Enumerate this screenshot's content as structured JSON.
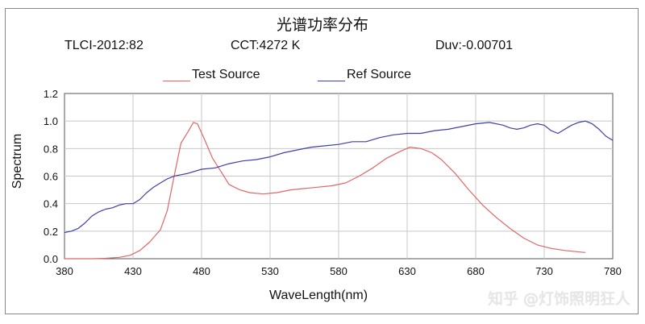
{
  "chart_data": {
    "type": "line",
    "title": "光谱功率分布",
    "info": {
      "tlci": "TLCI-2012:82",
      "cct": "CCT:4272 K",
      "duv": "Duv:-0.00701"
    },
    "xlabel": "WaveLength(nm)",
    "ylabel": "Spectrum",
    "xlim": [
      380,
      780
    ],
    "ylim": [
      0,
      1.2
    ],
    "x_ticks": [
      "380",
      "430",
      "480",
      "530",
      "580",
      "630",
      "680",
      "730",
      "780"
    ],
    "y_ticks": [
      "0.0",
      "0.2",
      "0.4",
      "0.6",
      "0.8",
      "1.0",
      "1.2"
    ],
    "grid": true,
    "legend_position": "top",
    "series": [
      {
        "name": "Test Source",
        "color": "#e06666",
        "points": [
          [
            380,
            0.0
          ],
          [
            390,
            0.0
          ],
          [
            400,
            0.0
          ],
          [
            410,
            0.003
          ],
          [
            420,
            0.01
          ],
          [
            428,
            0.025
          ],
          [
            435,
            0.06
          ],
          [
            442,
            0.12
          ],
          [
            450,
            0.21
          ],
          [
            455,
            0.35
          ],
          [
            460,
            0.6
          ],
          [
            465,
            0.84
          ],
          [
            470,
            0.92
          ],
          [
            474,
            0.99
          ],
          [
            477,
            0.98
          ],
          [
            482,
            0.87
          ],
          [
            488,
            0.73
          ],
          [
            495,
            0.62
          ],
          [
            500,
            0.54
          ],
          [
            508,
            0.5
          ],
          [
            515,
            0.48
          ],
          [
            525,
            0.47
          ],
          [
            535,
            0.48
          ],
          [
            545,
            0.5
          ],
          [
            555,
            0.51
          ],
          [
            565,
            0.52
          ],
          [
            575,
            0.53
          ],
          [
            585,
            0.55
          ],
          [
            595,
            0.6
          ],
          [
            605,
            0.66
          ],
          [
            615,
            0.73
          ],
          [
            625,
            0.78
          ],
          [
            632,
            0.81
          ],
          [
            640,
            0.8
          ],
          [
            648,
            0.77
          ],
          [
            655,
            0.72
          ],
          [
            665,
            0.62
          ],
          [
            675,
            0.5
          ],
          [
            685,
            0.39
          ],
          [
            695,
            0.3
          ],
          [
            705,
            0.22
          ],
          [
            715,
            0.15
          ],
          [
            725,
            0.1
          ],
          [
            735,
            0.075
          ],
          [
            745,
            0.06
          ],
          [
            760,
            0.045
          ]
        ]
      },
      {
        "name": "Ref Source",
        "color": "#3f3faa",
        "points": [
          [
            380,
            0.19
          ],
          [
            385,
            0.2
          ],
          [
            390,
            0.22
          ],
          [
            395,
            0.26
          ],
          [
            400,
            0.31
          ],
          [
            405,
            0.34
          ],
          [
            410,
            0.36
          ],
          [
            415,
            0.37
          ],
          [
            420,
            0.39
          ],
          [
            425,
            0.4
          ],
          [
            430,
            0.4
          ],
          [
            435,
            0.43
          ],
          [
            440,
            0.48
          ],
          [
            445,
            0.52
          ],
          [
            450,
            0.55
          ],
          [
            455,
            0.58
          ],
          [
            460,
            0.6
          ],
          [
            465,
            0.61
          ],
          [
            470,
            0.62
          ],
          [
            480,
            0.65
          ],
          [
            490,
            0.66
          ],
          [
            500,
            0.69
          ],
          [
            510,
            0.71
          ],
          [
            520,
            0.72
          ],
          [
            530,
            0.74
          ],
          [
            540,
            0.77
          ],
          [
            550,
            0.79
          ],
          [
            560,
            0.81
          ],
          [
            570,
            0.82
          ],
          [
            580,
            0.83
          ],
          [
            590,
            0.85
          ],
          [
            600,
            0.85
          ],
          [
            610,
            0.88
          ],
          [
            620,
            0.9
          ],
          [
            630,
            0.91
          ],
          [
            640,
            0.91
          ],
          [
            650,
            0.93
          ],
          [
            660,
            0.94
          ],
          [
            670,
            0.96
          ],
          [
            680,
            0.98
          ],
          [
            690,
            0.99
          ],
          [
            700,
            0.97
          ],
          [
            705,
            0.95
          ],
          [
            710,
            0.94
          ],
          [
            715,
            0.95
          ],
          [
            720,
            0.97
          ],
          [
            725,
            0.98
          ],
          [
            730,
            0.97
          ],
          [
            735,
            0.93
          ],
          [
            740,
            0.91
          ],
          [
            745,
            0.94
          ],
          [
            750,
            0.97
          ],
          [
            755,
            0.99
          ],
          [
            760,
            1.0
          ],
          [
            765,
            0.98
          ],
          [
            770,
            0.94
          ],
          [
            775,
            0.89
          ],
          [
            780,
            0.86
          ]
        ]
      }
    ]
  },
  "watermark": "知乎 @灯饰照明狂人"
}
